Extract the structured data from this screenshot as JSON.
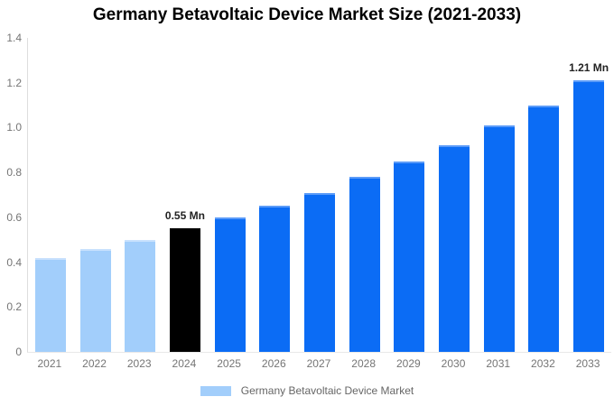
{
  "title": "Germany Betavoltaic Device Market Size (2021-2033)",
  "chart_data": {
    "type": "bar",
    "title": "Germany Betavoltaic Device Market Size (2021-2033)",
    "xlabel": "",
    "ylabel": "",
    "unit": "Mn",
    "ylim": [
      0,
      1.4
    ],
    "grid": false,
    "legend_position": "bottom",
    "series_name": "Germany Betavoltaic Device Market",
    "yticks": [
      {
        "value": 0,
        "label": "0"
      },
      {
        "value": 0.2,
        "label": "0.2"
      },
      {
        "value": 0.4,
        "label": "0.4"
      },
      {
        "value": 0.6,
        "label": "0.6"
      },
      {
        "value": 0.8,
        "label": "0.8"
      },
      {
        "value": 1.0,
        "label": "1.0"
      },
      {
        "value": 1.2,
        "label": "1.2"
      },
      {
        "value": 1.4,
        "label": "1.4"
      }
    ],
    "points": [
      {
        "year": "2021",
        "value": 0.42,
        "segment": "historical"
      },
      {
        "year": "2022",
        "value": 0.46,
        "segment": "historical"
      },
      {
        "year": "2023",
        "value": 0.5,
        "segment": "historical"
      },
      {
        "year": "2024",
        "value": 0.55,
        "segment": "highlight",
        "label": "0.55 Mn"
      },
      {
        "year": "2025",
        "value": 0.6,
        "segment": "forecast"
      },
      {
        "year": "2026",
        "value": 0.65,
        "segment": "forecast"
      },
      {
        "year": "2027",
        "value": 0.71,
        "segment": "forecast"
      },
      {
        "year": "2028",
        "value": 0.78,
        "segment": "forecast"
      },
      {
        "year": "2029",
        "value": 0.85,
        "segment": "forecast"
      },
      {
        "year": "2030",
        "value": 0.92,
        "segment": "forecast"
      },
      {
        "year": "2031",
        "value": 1.01,
        "segment": "forecast"
      },
      {
        "year": "2032",
        "value": 1.1,
        "segment": "forecast"
      },
      {
        "year": "2033",
        "value": 1.21,
        "segment": "forecast",
        "label": "1.21 Mn"
      }
    ],
    "colors": {
      "historical": "#A2CEFB",
      "highlight": "#000000",
      "forecast": "#0B6CF5"
    },
    "edge_colors": {
      "historical": "#C8E1FD",
      "highlight": "#000000",
      "forecast": "#5B9BF8"
    }
  },
  "legend": {
    "label": "Germany Betavoltaic Device Market",
    "swatch_color": "#A2CEFB"
  }
}
